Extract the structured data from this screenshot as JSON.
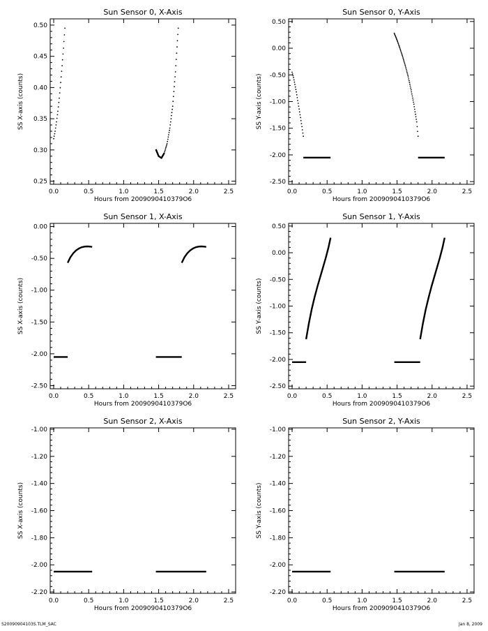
{
  "footer": {
    "left": "S20090904103S.TLM_SAC",
    "right": "Jan 8, 2009"
  },
  "chart_data": [
    {
      "type": "scatter",
      "title": "Sun Sensor 0, X-Axis",
      "xlabel": "Hours from 2009090410379O6",
      "ylabel": "SS X-axis (counts)",
      "xlim": [
        -0.05,
        2.6
      ],
      "ylim": [
        0.245,
        0.51
      ],
      "xticks": [
        0.0,
        0.5,
        1.0,
        1.5,
        2.0,
        2.5
      ],
      "xtick_labels": [
        "0.0",
        "0.5",
        "1.0",
        "1.5",
        "2.0",
        "2.5"
      ],
      "yticks": [
        0.25,
        0.3,
        0.35,
        0.4,
        0.45,
        0.5
      ],
      "ytick_labels": [
        "0.25",
        "0.30",
        "0.35",
        "0.40",
        "0.45",
        "0.50"
      ],
      "grid": false,
      "series": [
        {
          "style": "dots",
          "x": [
            0.0,
            0.02,
            0.04,
            0.06,
            0.08,
            0.1,
            0.12,
            0.14,
            0.16
          ],
          "y": [
            0.318,
            0.33,
            0.345,
            0.362,
            0.383,
            0.408,
            0.435,
            0.463,
            0.495
          ]
        },
        {
          "style": "line",
          "x": [
            1.46,
            1.5,
            1.54,
            1.58
          ],
          "y": [
            0.301,
            0.29,
            0.287,
            0.295
          ]
        },
        {
          "style": "dots",
          "x": [
            1.58,
            1.62,
            1.66,
            1.7,
            1.74,
            1.78
          ],
          "y": [
            0.295,
            0.31,
            0.335,
            0.37,
            0.425,
            0.495
          ]
        }
      ]
    },
    {
      "type": "scatter",
      "title": "Sun Sensor 0, Y-Axis",
      "xlabel": "Hours from 2009090410379O6",
      "ylabel": "SS Y-axis (counts)",
      "xlim": [
        -0.05,
        2.6
      ],
      "ylim": [
        -2.55,
        0.55
      ],
      "xticks": [
        0.0,
        0.5,
        1.0,
        1.5,
        2.0,
        2.5
      ],
      "xtick_labels": [
        "0.0",
        "0.5",
        "1.0",
        "1.5",
        "2.0",
        "2.5"
      ],
      "yticks": [
        -2.5,
        -2.0,
        -1.5,
        -1.0,
        -0.5,
        0.0,
        0.5
      ],
      "ytick_labels": [
        "-2.50",
        "-2.00",
        "-1.50",
        "-1.00",
        "-0.50",
        "0.00",
        "0.50"
      ],
      "grid": false,
      "series": [
        {
          "style": "dots",
          "x": [
            0.0,
            0.02,
            0.04,
            0.06,
            0.08,
            0.1,
            0.12,
            0.14,
            0.16
          ],
          "y": [
            -0.45,
            -0.55,
            -0.68,
            -0.82,
            -0.98,
            -1.14,
            -1.3,
            -1.47,
            -1.65
          ]
        },
        {
          "style": "line",
          "x": [
            0.16,
            0.55
          ],
          "y": [
            -2.05,
            -2.05
          ]
        },
        {
          "style": "dots",
          "x": [
            1.46,
            1.5,
            1.54,
            1.58,
            1.62,
            1.66,
            1.7,
            1.74,
            1.78,
            1.8
          ],
          "y": [
            0.28,
            0.15,
            0.0,
            -0.16,
            -0.34,
            -0.54,
            -0.78,
            -1.05,
            -1.38,
            -1.65
          ]
        },
        {
          "style": "line",
          "x": [
            1.8,
            2.18
          ],
          "y": [
            -2.05,
            -2.05
          ]
        }
      ]
    },
    {
      "type": "scatter",
      "title": "Sun Sensor 1, X-Axis",
      "xlabel": "Hours from 2009090410379O6",
      "ylabel": "SS X-axis (counts)",
      "xlim": [
        -0.05,
        2.6
      ],
      "ylim": [
        -2.55,
        0.05
      ],
      "xticks": [
        0.0,
        0.5,
        1.0,
        1.5,
        2.0,
        2.5
      ],
      "xtick_labels": [
        "0.0",
        "0.5",
        "1.0",
        "1.5",
        "2.0",
        "2.5"
      ],
      "yticks": [
        -2.5,
        -2.0,
        -1.5,
        -1.0,
        -0.5,
        0.0
      ],
      "ytick_labels": [
        "-2.50",
        "-2.00",
        "-1.50",
        "-1.00",
        "-0.50",
        "0.00"
      ],
      "grid": false,
      "series": [
        {
          "style": "line",
          "x": [
            0.0,
            0.2
          ],
          "y": [
            -2.05,
            -2.05
          ]
        },
        {
          "style": "line",
          "x": [
            0.2,
            0.24,
            0.28,
            0.32,
            0.36,
            0.4,
            0.44,
            0.48,
            0.52,
            0.55
          ],
          "y": [
            -0.57,
            -0.48,
            -0.42,
            -0.375,
            -0.345,
            -0.325,
            -0.315,
            -0.312,
            -0.315,
            -0.32
          ]
        },
        {
          "style": "line",
          "x": [
            1.46,
            1.83
          ],
          "y": [
            -2.05,
            -2.05
          ]
        },
        {
          "style": "line",
          "x": [
            1.83,
            1.87,
            1.91,
            1.95,
            1.99,
            2.03,
            2.07,
            2.11,
            2.15,
            2.18
          ],
          "y": [
            -0.57,
            -0.48,
            -0.42,
            -0.375,
            -0.345,
            -0.325,
            -0.315,
            -0.312,
            -0.315,
            -0.32
          ]
        }
      ]
    },
    {
      "type": "scatter",
      "title": "Sun Sensor 1, Y-Axis",
      "xlabel": "Hours from 2009090410379O6",
      "ylabel": "SS Y-axis (counts)",
      "xlim": [
        -0.05,
        2.6
      ],
      "ylim": [
        -2.55,
        0.55
      ],
      "xticks": [
        0.0,
        0.5,
        1.0,
        1.5,
        2.0,
        2.5
      ],
      "xtick_labels": [
        "0.0",
        "0.5",
        "1.0",
        "1.5",
        "2.0",
        "2.5"
      ],
      "yticks": [
        -2.5,
        -2.0,
        -1.5,
        -1.0,
        -0.5,
        0.0,
        0.5
      ],
      "ytick_labels": [
        "-2.50",
        "-2.00",
        "-1.50",
        "-1.00",
        "-0.50",
        "0.00",
        "0.50"
      ],
      "grid": false,
      "series": [
        {
          "style": "line",
          "x": [
            0.0,
            0.2
          ],
          "y": [
            -2.05,
            -2.05
          ]
        },
        {
          "style": "line",
          "x": [
            0.2,
            0.24,
            0.28,
            0.32,
            0.36,
            0.4,
            0.44,
            0.48,
            0.52,
            0.55
          ],
          "y": [
            -1.62,
            -1.32,
            -1.06,
            -0.84,
            -0.64,
            -0.46,
            -0.28,
            -0.1,
            0.1,
            0.28
          ]
        },
        {
          "style": "line",
          "x": [
            1.46,
            1.83
          ],
          "y": [
            -2.05,
            -2.05
          ]
        },
        {
          "style": "line",
          "x": [
            1.83,
            1.87,
            1.91,
            1.95,
            1.99,
            2.03,
            2.07,
            2.11,
            2.15,
            2.18
          ],
          "y": [
            -1.62,
            -1.32,
            -1.06,
            -0.84,
            -0.64,
            -0.46,
            -0.28,
            -0.1,
            0.1,
            0.28
          ]
        }
      ]
    },
    {
      "type": "scatter",
      "title": "Sun Sensor 2, X-Axis",
      "xlabel": "Hours from 2009090410379O6",
      "ylabel": "SS X-axis (counts)",
      "xlim": [
        -0.05,
        2.6
      ],
      "ylim": [
        -2.21,
        -0.99
      ],
      "xticks": [
        0.0,
        0.5,
        1.0,
        1.5,
        2.0,
        2.5
      ],
      "xtick_labels": [
        "0.0",
        "0.5",
        "1.0",
        "1.5",
        "2.0",
        "2.5"
      ],
      "yticks": [
        -2.2,
        -2.0,
        -1.8,
        -1.6,
        -1.4,
        -1.2,
        -1.0
      ],
      "ytick_labels": [
        "-2.20",
        "-2.00",
        "-1.80",
        "-1.60",
        "-1.40",
        "-1.20",
        "-1.00"
      ],
      "grid": false,
      "series": [
        {
          "style": "line",
          "x": [
            0.0,
            0.55
          ],
          "y": [
            -2.05,
            -2.05
          ]
        },
        {
          "style": "line",
          "x": [
            1.46,
            2.18
          ],
          "y": [
            -2.05,
            -2.05
          ]
        }
      ]
    },
    {
      "type": "scatter",
      "title": "Sun Sensor 2, Y-Axis",
      "xlabel": "Hours from 2009090410379O6",
      "ylabel": "SS Y-axis (counts)",
      "xlim": [
        -0.05,
        2.6
      ],
      "ylim": [
        -2.21,
        -0.99
      ],
      "xticks": [
        0.0,
        0.5,
        1.0,
        1.5,
        2.0,
        2.5
      ],
      "xtick_labels": [
        "0.0",
        "0.5",
        "1.0",
        "1.5",
        "2.0",
        "2.5"
      ],
      "yticks": [
        -2.2,
        -2.0,
        -1.8,
        -1.6,
        -1.4,
        -1.2,
        -1.0
      ],
      "ytick_labels": [
        "-2.20",
        "-2.00",
        "-1.80",
        "-1.60",
        "-1.40",
        "-1.20",
        "-1.00"
      ],
      "grid": false,
      "series": [
        {
          "style": "line",
          "x": [
            0.0,
            0.55
          ],
          "y": [
            -2.05,
            -2.05
          ]
        },
        {
          "style": "line",
          "x": [
            1.46,
            2.18
          ],
          "y": [
            -2.05,
            -2.05
          ]
        }
      ]
    }
  ]
}
